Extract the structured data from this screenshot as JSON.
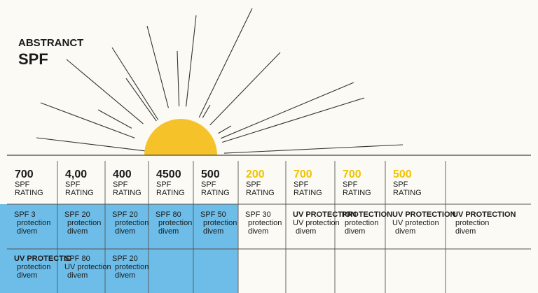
{
  "header": {
    "title": "ABSTRANCT",
    "subtitle": "SPF"
  },
  "table": {
    "columns": [
      {
        "value": "700",
        "unit": "SPF",
        "label": "RATING",
        "color": "#1a1a1a"
      },
      {
        "value": "4,00",
        "unit": "SPF",
        "label": "RATING",
        "color": "#1a1a1a"
      },
      {
        "value": "400",
        "unit": "SPF",
        "label": "RATING",
        "color": "#1a1a1a"
      },
      {
        "value": "4500",
        "unit": "SPF",
        "label": "RATING",
        "color": "#1a1a1a"
      },
      {
        "value": "500",
        "unit": "SPF",
        "label": "RATING",
        "color": "#1a1a1a"
      },
      {
        "value": "200",
        "unit": "SPF",
        "label": "RATING",
        "color": "#f2c200"
      },
      {
        "value": "700",
        "unit": "SPF",
        "label": "RATING",
        "color": "#f2c200"
      },
      {
        "value": "700",
        "unit": "SPF",
        "label": "RATING",
        "color": "#f2c200"
      },
      {
        "value": "500",
        "unit": "SPF",
        "label": "RATING",
        "color": "#f2c200"
      }
    ],
    "rows": [
      [
        [
          "SPF 3",
          "protection",
          "divem"
        ],
        [
          "SPF 20",
          "protection",
          "divem"
        ],
        [
          "SPF 20",
          "protection",
          "divem"
        ],
        [
          "SPF 80",
          "protection",
          "divem"
        ],
        [
          "SPF 50",
          "protection",
          "divem"
        ],
        [
          "SPF 30",
          "protection",
          "divem"
        ],
        [
          "UV PROTECTION",
          "UV protection",
          "divem"
        ],
        [
          "PROTECTION",
          "protection",
          "divem"
        ],
        [
          "UV PROTECTION",
          "UV protection",
          "divem"
        ],
        [
          "UV PROTECTION",
          "protection",
          "divem"
        ]
      ],
      [
        [
          "UV PROTECTIC",
          "protection",
          "divem"
        ],
        [
          "SPF 80",
          "UV protection",
          "divem"
        ],
        [
          "SPF 20",
          "protection",
          "divem"
        ]
      ]
    ]
  }
}
